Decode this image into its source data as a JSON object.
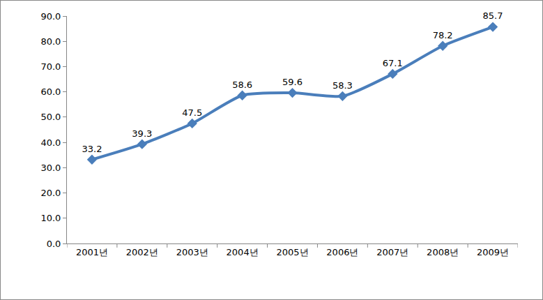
{
  "chart_data": {
    "type": "line",
    "categories": [
      "2001년",
      "2002년",
      "2003년",
      "2004년",
      "2005년",
      "2006년",
      "2007년",
      "2008년",
      "2009년"
    ],
    "values": [
      33.2,
      39.3,
      47.5,
      58.6,
      59.6,
      58.3,
      67.1,
      78.2,
      85.7
    ],
    "color": "#4a7ebb",
    "marker": "diamond",
    "line_style": "solid",
    "ylim": [
      0,
      90
    ],
    "yticks": [
      {
        "value": 0,
        "label": "0.0"
      },
      {
        "value": 10,
        "label": "10.0"
      },
      {
        "value": 20,
        "label": "20.0"
      },
      {
        "value": 30,
        "label": "30.0"
      },
      {
        "value": 40,
        "label": "40.0"
      },
      {
        "value": 50,
        "label": "50.0"
      },
      {
        "value": 60,
        "label": "60.0"
      },
      {
        "value": 70,
        "label": "70.0"
      },
      {
        "value": 80,
        "label": "80.0"
      },
      {
        "value": 90,
        "label": "90.0"
      }
    ],
    "grid": false,
    "data_labels": true
  }
}
